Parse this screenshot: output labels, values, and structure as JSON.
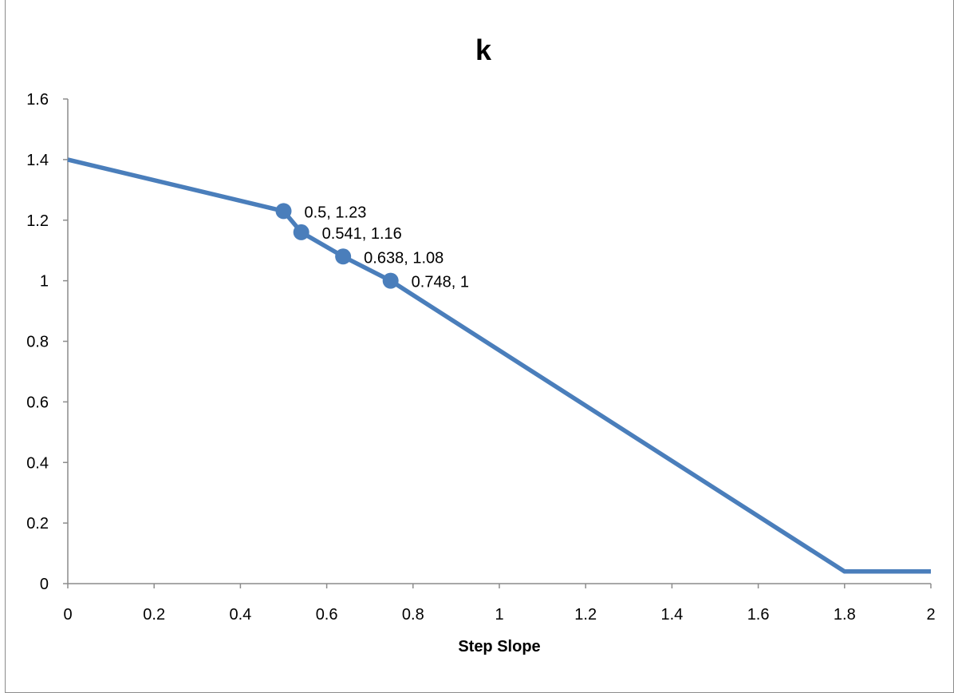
{
  "chart_data": {
    "type": "line",
    "title": "k",
    "xlabel": "Step Slope",
    "ylabel": "",
    "xlim": [
      0,
      2
    ],
    "ylim": [
      0,
      1.6
    ],
    "x_ticks": [
      "0",
      "0.2",
      "0.4",
      "0.6",
      "0.8",
      "1",
      "1.2",
      "1.4",
      "1.6",
      "1.8",
      "2"
    ],
    "y_ticks": [
      "0",
      "0.2",
      "0.4",
      "0.6",
      "0.8",
      "1",
      "1.2",
      "1.4",
      "1.6"
    ],
    "grid": false,
    "series": [
      {
        "color": "#4a7ebb",
        "x": [
          0,
          0.5,
          0.541,
          0.638,
          0.748,
          1.8,
          2
        ],
        "y": [
          1.4,
          1.23,
          1.16,
          1.08,
          1.0,
          0.04,
          0.04
        ]
      }
    ],
    "markers": [
      {
        "x": 0.5,
        "y": 1.23,
        "label": "0.5, 1.23"
      },
      {
        "x": 0.541,
        "y": 1.16,
        "label": "0.541, 1.16"
      },
      {
        "x": 0.638,
        "y": 1.08,
        "label": "0.638, 1.08"
      },
      {
        "x": 0.748,
        "y": 1.0,
        "label": "0.748, 1"
      }
    ],
    "axis_color": "#8c8c8c"
  }
}
